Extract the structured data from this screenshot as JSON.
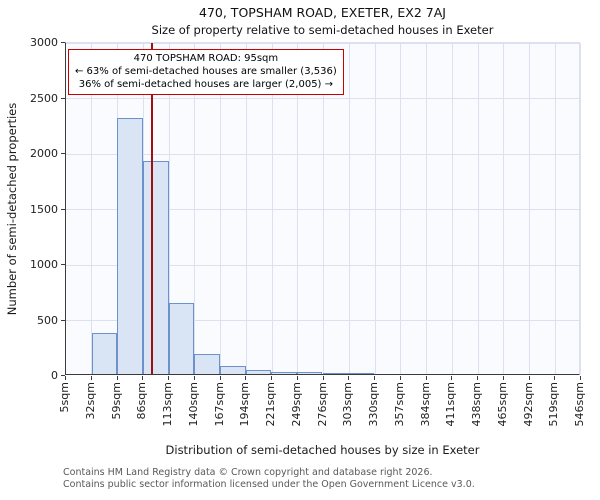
{
  "chart_data": {
    "type": "bar",
    "title": "470, TOPSHAM ROAD, EXETER, EX2 7AJ",
    "subtitle": "Size of property relative to semi-detached houses in Exeter",
    "xlabel": "Distribution of semi-detached houses by size in Exeter",
    "ylabel": "Number of semi-detached properties",
    "ylim": [
      0,
      3000
    ],
    "yticks": [
      0,
      500,
      1000,
      1500,
      2000,
      2500,
      3000
    ],
    "x_min_sqm": 5,
    "x_max_sqm": 546,
    "x_tick_labels": [
      "5sqm",
      "32sqm",
      "59sqm",
      "86sqm",
      "113sqm",
      "140sqm",
      "167sqm",
      "194sqm",
      "221sqm",
      "249sqm",
      "276sqm",
      "303sqm",
      "330sqm",
      "357sqm",
      "384sqm",
      "411sqm",
      "438sqm",
      "465sqm",
      "492sqm",
      "519sqm",
      "546sqm"
    ],
    "values": [
      0,
      370,
      2320,
      1930,
      640,
      185,
      70,
      40,
      22,
      14,
      8,
      5,
      0,
      0,
      0,
      0,
      0,
      0,
      0,
      0
    ],
    "grid": true,
    "legend": false,
    "marker": {
      "value_sqm": 95,
      "color": "#a01010"
    },
    "colors": {
      "bar_fill": "#d9e4f5",
      "bar_border": "#6c92c9",
      "grid": "#dce1ef",
      "plot_bg": "#fafbfe"
    }
  },
  "annotation": {
    "border_color": "#cc0000",
    "line1": "470 TOPSHAM ROAD: 95sqm",
    "line2": "← 63% of semi-detached houses are smaller (3,536)",
    "line3": "36% of semi-detached houses are larger (2,005) →"
  },
  "footer": {
    "line1": "Contains HM Land Registry data © Crown copyright and database right 2026.",
    "line2": "Contains public sector information licensed under the Open Government Licence v3.0."
  }
}
